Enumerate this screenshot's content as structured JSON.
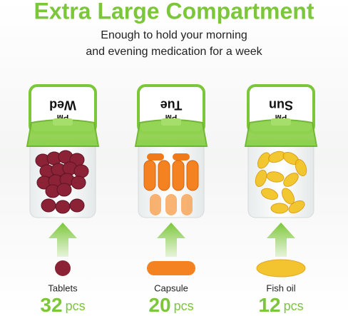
{
  "header": {
    "title": "Extra Large Compartment",
    "subtitle_lines": [
      "Enough to hold your morning",
      "and evening medication for a week"
    ]
  },
  "compartments": [
    {
      "day": "Wed",
      "period": "PM",
      "name": "Tablets",
      "count": 32,
      "unit": "pcs"
    },
    {
      "day": "Tue",
      "period": "PM",
      "name": "Capsule",
      "count": 20,
      "unit": "pcs"
    },
    {
      "day": "Sun",
      "period": "PM",
      "name": "Fish oil",
      "count": 12,
      "unit": "pcs"
    }
  ]
}
